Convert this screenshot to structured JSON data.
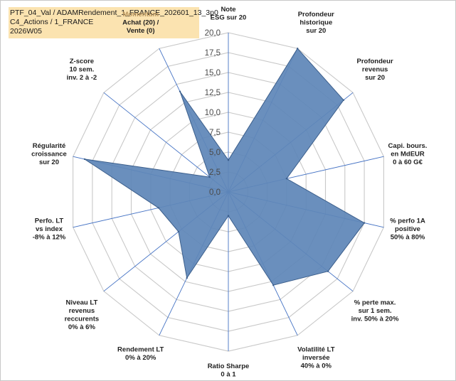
{
  "title_lines": [
    "PTF_04_Val / ADAMRendement_1_FRANCE_202601_13_3p0",
    "C4_Actions / 1_FRANCE",
    "2026W05"
  ],
  "chart_data": {
    "type": "radar",
    "title": "PTF_04_Val / ADAMRendement_1_FRANCE_202601_13_3p0 — C4_Actions / 1_FRANCE — 2026W05",
    "rlim": [
      0,
      20
    ],
    "ticks": [
      0.0,
      2.5,
      5.0,
      7.5,
      10.0,
      12.5,
      15.0,
      17.5,
      20.0
    ],
    "tick_labels": [
      "0,0",
      "2,5",
      "5,0",
      "7,5",
      "10,0",
      "12,5",
      "15,0",
      "17,5",
      "20,0"
    ],
    "grid": true,
    "categories": [
      "Note|ESG sur 20",
      "Profondeur|historique|sur 20",
      "Profondeur|revenus|sur 20",
      "Capi. bours.|en MdEUR|0 à 60 G€",
      "% perfo 1A|positive|50% à 80%",
      "% perte max.|sur 1 sem.|inv. 50% à 20%",
      "Volatilité LT|inversée|40% à 0%",
      "Ratio Sharpe|0 à 1",
      "Rendement LT|0% à 20%",
      "Niveau LT|revenus|reccurents|0% à 6%",
      "Perfo. LT|vs index|-8% à 12%",
      "Régularité|croissance|sur 20",
      "Z-score|10 sem.|inv. 2 à -2",
      "Momentum|Achat (20) /|Vente (0)"
    ],
    "series": [
      {
        "name": "PTF_04_Val",
        "color": "#5f86b8",
        "values": [
          4,
          20,
          18.5,
          7.5,
          17.5,
          16,
          13,
          3,
          12,
          8,
          9,
          18.5,
          3,
          14
        ]
      }
    ]
  },
  "colors": {
    "fill": "#5f86b8",
    "edge": "#3c5f8c",
    "spoke": "#4472c4",
    "grid": "#c8c8c8",
    "title_bg": "#fbe3b0",
    "accent_label": "#b8935a"
  }
}
